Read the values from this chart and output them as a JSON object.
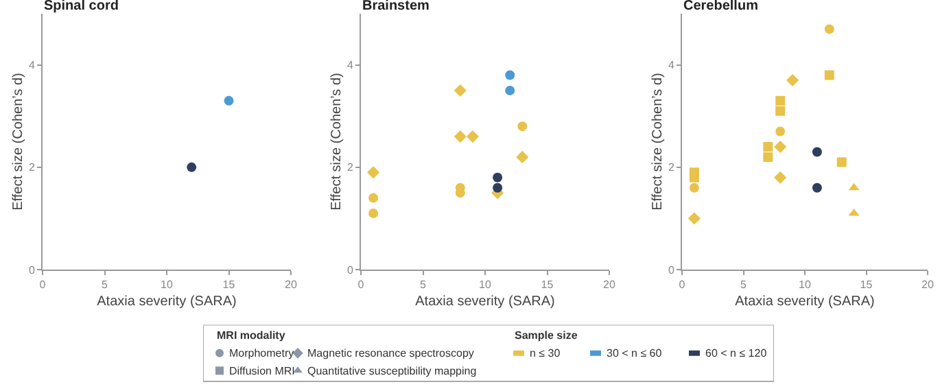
{
  "chart_data": [
    {
      "type": "scatter",
      "title": "Spinal cord",
      "xlabel": "Ataxia severity (SARA)",
      "ylabel": "Effect size (Cohen’s d)",
      "xlim": [
        0,
        20
      ],
      "xticks": [
        0,
        5,
        10,
        15,
        20
      ],
      "ylim": [
        0,
        5
      ],
      "yticks": [
        0,
        2,
        4
      ],
      "series": [
        {
          "color": "#4a9ad4",
          "marker": "circle",
          "x": [
            15
          ],
          "values": [
            3.3
          ]
        },
        {
          "color": "#2e3e5c",
          "marker": "circle",
          "x": [
            12
          ],
          "values": [
            2.0
          ]
        }
      ]
    },
    {
      "type": "scatter",
      "title": "Brainstem",
      "xlabel": "Ataxia severity (SARA)",
      "ylabel": "Effect size (Cohen’s d)",
      "xlim": [
        0,
        20
      ],
      "xticks": [
        0,
        5,
        10,
        15,
        20
      ],
      "ylim": [
        0,
        5
      ],
      "yticks": [
        0,
        2,
        4
      ],
      "series": [
        {
          "color": "#e8c24a",
          "marker": "circle",
          "x": [
            1,
            1,
            8,
            8,
            13
          ],
          "values": [
            1.4,
            1.1,
            1.6,
            1.5,
            2.8
          ]
        },
        {
          "color": "#e8c24a",
          "marker": "diamond",
          "x": [
            1,
            8,
            8,
            9,
            11,
            13
          ],
          "values": [
            1.9,
            3.5,
            2.6,
            2.6,
            1.5,
            2.2
          ]
        },
        {
          "color": "#4a9ad4",
          "marker": "circle",
          "x": [
            12,
            12
          ],
          "values": [
            3.8,
            3.5
          ]
        },
        {
          "color": "#2e3e5c",
          "marker": "circle",
          "x": [
            11,
            11
          ],
          "values": [
            1.8,
            1.6
          ]
        }
      ]
    },
    {
      "type": "scatter",
      "title": "Cerebellum",
      "xlabel": "Ataxia severity (SARA)",
      "ylabel": "Effect size (Cohen’s d)",
      "xlim": [
        0,
        20
      ],
      "xticks": [
        0,
        5,
        10,
        15,
        20
      ],
      "ylim": [
        0,
        5
      ],
      "yticks": [
        0,
        2,
        4
      ],
      "series": [
        {
          "color": "#e8c24a",
          "marker": "circle",
          "x": [
            12,
            8,
            1
          ],
          "values": [
            4.7,
            2.7,
            1.6
          ]
        },
        {
          "color": "#e8c24a",
          "marker": "square",
          "x": [
            12,
            8,
            8,
            7,
            7,
            13,
            1,
            1
          ],
          "values": [
            3.8,
            3.3,
            3.1,
            2.4,
            2.2,
            2.1,
            1.9,
            1.8
          ]
        },
        {
          "color": "#e8c24a",
          "marker": "diamond",
          "x": [
            9,
            8,
            8,
            1
          ],
          "values": [
            3.7,
            2.4,
            1.8,
            1.0
          ]
        },
        {
          "color": "#e8c24a",
          "marker": "triangle",
          "x": [
            14,
            14
          ],
          "values": [
            1.6,
            1.1
          ]
        },
        {
          "color": "#2e3e5c",
          "marker": "circle",
          "x": [
            11,
            11
          ],
          "values": [
            2.3,
            1.6
          ]
        }
      ]
    },
    {
      "type": "other",
      "title": "MRI modality",
      "series": [
        {
          "name": "Morphometry",
          "marker": "circle",
          "color": "#8c96a8"
        },
        {
          "name": "Diffusion MRI",
          "marker": "square",
          "color": "#8c96a8"
        },
        {
          "name": "Magnetic resonance spectroscopy",
          "marker": "diamond",
          "color": "#8c96a8"
        },
        {
          "name": "Quantitative susceptibility mapping",
          "marker": "triangle",
          "color": "#8c96a8"
        }
      ]
    },
    {
      "type": "other",
      "title": "Sample size",
      "series": [
        {
          "name": "n ≤ 30",
          "color": "#e8c24a"
        },
        {
          "name": "30 < n ≤ 60",
          "color": "#4a9ad4"
        },
        {
          "name": "60 < n ≤ 120",
          "color": "#2e3e5c"
        }
      ]
    }
  ]
}
